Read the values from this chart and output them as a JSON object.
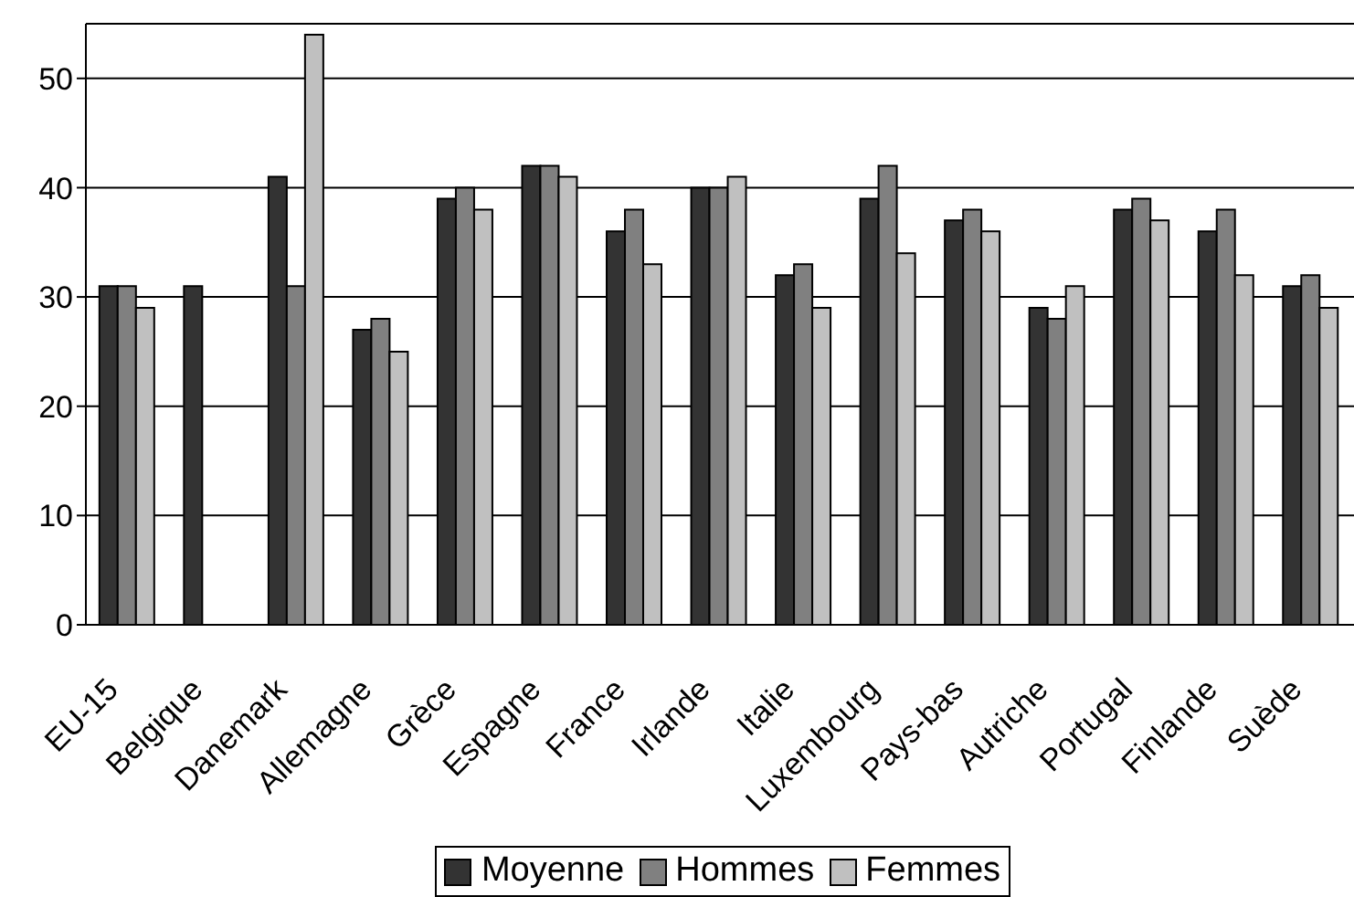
{
  "chart_data": {
    "type": "bar",
    "categories": [
      "EU-15",
      "Belgique",
      "Danemark",
      "Allemagne",
      "Grèce",
      "Espagne",
      "France",
      "Irlande",
      "Italie",
      "Luxembourg",
      "Pays-bas",
      "Autriche",
      "Portugal",
      "Finlande",
      "Suède"
    ],
    "series": [
      {
        "name": "Moyenne",
        "color": "#333333",
        "values": [
          31,
          31,
          41,
          27,
          39,
          42,
          36,
          40,
          32,
          39,
          37,
          29,
          38,
          36,
          31
        ]
      },
      {
        "name": "Hommes",
        "color": "#808080",
        "values": [
          31,
          null,
          31,
          28,
          40,
          42,
          38,
          40,
          33,
          42,
          38,
          28,
          39,
          38,
          32
        ]
      },
      {
        "name": "Femmes",
        "color": "#c0c0c0",
        "values": [
          29,
          null,
          54,
          25,
          38,
          41,
          33,
          41,
          29,
          34,
          36,
          31,
          37,
          32,
          29
        ]
      }
    ],
    "ylim": [
      0,
      55
    ],
    "yticks": [
      0,
      10,
      20,
      30,
      40,
      50
    ],
    "grid": "y",
    "legend": "bottom"
  }
}
